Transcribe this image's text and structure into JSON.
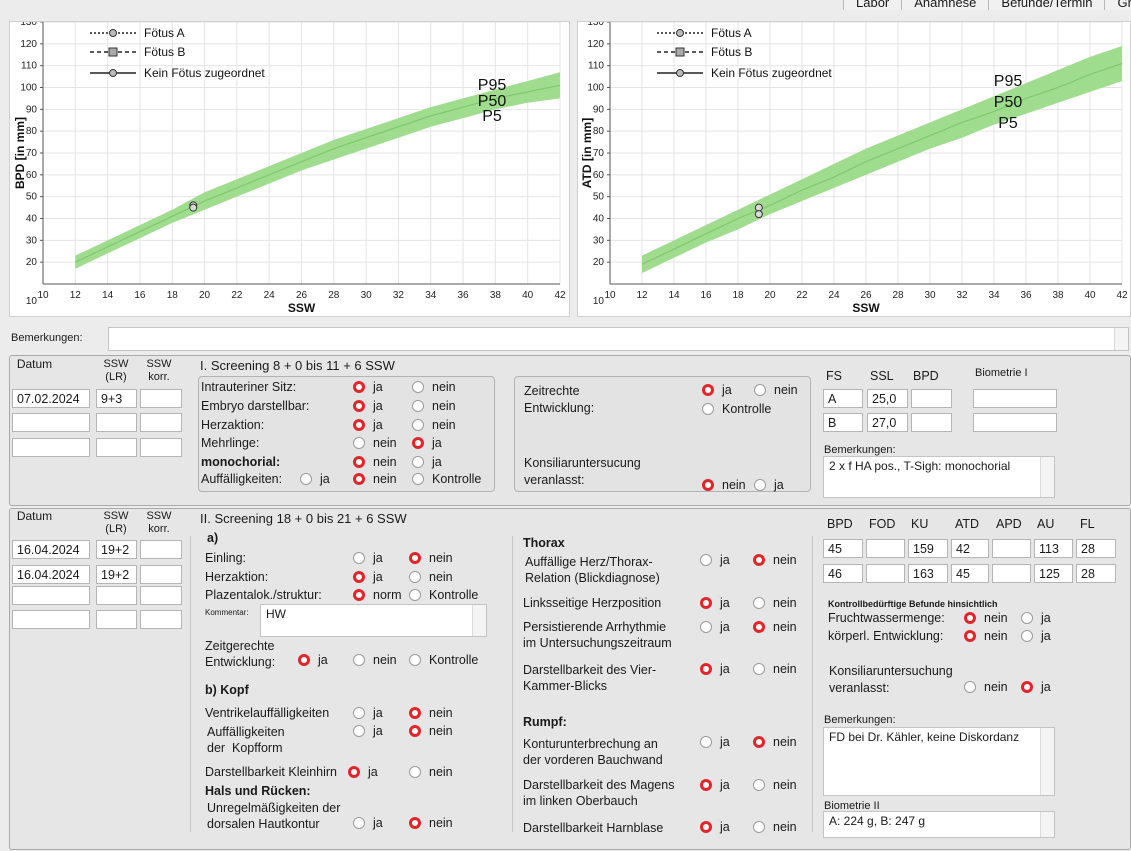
{
  "tabs": [
    "Labor",
    "Anamnese",
    "Befunde/Termin",
    "Gr"
  ],
  "charts": [
    {
      "ylabel": "BPD [in mm]",
      "xlabel": "SSW",
      "p_labels": [
        "P95",
        "P50",
        "P5"
      ]
    },
    {
      "ylabel": "ATD [in mm]",
      "xlabel": "SSW",
      "p_labels": [
        "P95",
        "P50",
        "P5"
      ]
    }
  ],
  "legend": [
    "Fötus A",
    "Fötus B",
    "Kein Fötus zugeordnet"
  ],
  "chart_data": [
    {
      "type": "area",
      "title": "",
      "xlabel": "SSW",
      "ylabel": "BPD [in mm]",
      "xlim": [
        10,
        42
      ],
      "ylim": [
        10,
        130
      ],
      "x_ticks": [
        10,
        12,
        14,
        16,
        18,
        20,
        22,
        24,
        26,
        28,
        30,
        32,
        34,
        36,
        38,
        40,
        42
      ],
      "y_ticks": [
        20,
        30,
        40,
        50,
        60,
        70,
        80,
        90,
        100,
        110,
        120,
        130
      ],
      "series": [
        {
          "name": "P95",
          "x": [
            12,
            14,
            16,
            18,
            20,
            22,
            24,
            26,
            28,
            30,
            32,
            34,
            36,
            38,
            40,
            42
          ],
          "y": [
            23,
            30,
            37,
            44,
            52,
            58,
            64,
            70,
            76,
            81,
            86,
            91,
            95,
            99,
            103,
            107
          ]
        },
        {
          "name": "P50",
          "x": [
            12,
            14,
            16,
            18,
            20,
            22,
            24,
            26,
            28,
            30,
            32,
            34,
            36,
            38,
            40,
            42
          ],
          "y": [
            20,
            27,
            34,
            41,
            48,
            54,
            60,
            66,
            72,
            77,
            82,
            87,
            91,
            95,
            98,
            101
          ]
        },
        {
          "name": "P5",
          "x": [
            12,
            14,
            16,
            18,
            20,
            22,
            24,
            26,
            28,
            30,
            32,
            34,
            36,
            38,
            40,
            42
          ],
          "y": [
            17,
            24,
            31,
            38,
            44,
            50,
            56,
            62,
            67,
            72,
            77,
            82,
            86,
            90,
            93,
            95
          ]
        }
      ],
      "points": [
        {
          "x": 19.3,
          "y": 46
        },
        {
          "x": 19.3,
          "y": 45
        }
      ],
      "grid": true,
      "legend_position": "top-left"
    },
    {
      "type": "area",
      "title": "",
      "xlabel": "SSW",
      "ylabel": "ATD [in mm]",
      "xlim": [
        10,
        42
      ],
      "ylim": [
        10,
        130
      ],
      "x_ticks": [
        10,
        12,
        14,
        16,
        18,
        20,
        22,
        24,
        26,
        28,
        30,
        32,
        34,
        36,
        38,
        40,
        42
      ],
      "y_ticks": [
        20,
        30,
        40,
        50,
        60,
        70,
        80,
        90,
        100,
        110,
        120,
        130
      ],
      "series": [
        {
          "name": "P95",
          "x": [
            12,
            14,
            16,
            18,
            20,
            22,
            24,
            26,
            28,
            30,
            32,
            34,
            36,
            38,
            40,
            42
          ],
          "y": [
            23,
            30,
            37,
            44,
            51,
            58,
            65,
            72,
            78,
            84,
            90,
            96,
            102,
            108,
            114,
            119
          ]
        },
        {
          "name": "P50",
          "x": [
            12,
            14,
            16,
            18,
            20,
            22,
            24,
            26,
            28,
            30,
            32,
            34,
            36,
            38,
            40,
            42
          ],
          "y": [
            19,
            26,
            33,
            40,
            46,
            53,
            59,
            66,
            72,
            78,
            84,
            89,
            95,
            100,
            106,
            111
          ]
        },
        {
          "name": "P5",
          "x": [
            12,
            14,
            16,
            18,
            20,
            22,
            24,
            26,
            28,
            30,
            32,
            34,
            36,
            38,
            40,
            42
          ],
          "y": [
            15,
            22,
            29,
            35,
            42,
            48,
            54,
            60,
            66,
            72,
            77,
            83,
            88,
            93,
            98,
            103
          ]
        }
      ],
      "points": [
        {
          "x": 19.3,
          "y": 45
        },
        {
          "x": 19.3,
          "y": 42
        }
      ],
      "grid": true,
      "legend_position": "top-left"
    }
  ],
  "bemerkungen_label": "Bemerkungen:",
  "s1": {
    "hdr_datum": "Datum",
    "hdr_ssw": "SSW\n(LR)",
    "hdr_ssw_korr": "SSW\nkorr.",
    "title": "I. Screening 8 + 0 bis 11 + 6 SSW",
    "rows": [
      [
        "07.02.2024",
        "9+3",
        ""
      ],
      [
        "",
        "",
        ""
      ],
      [
        "",
        "",
        ""
      ]
    ],
    "q": {
      "sitz": "Intrauteriner Sitz:",
      "embryo": "Embryo darstellbar:",
      "herz": "Herzaktion:",
      "mehrlinge": "Mehrlinge:",
      "mono": "monochorial:",
      "auff": "Auffälligkeiten:",
      "ja": "ja",
      "nein": "nein",
      "kontrolle": "Kontrolle"
    },
    "zeit": "Zeitrechte\nEntwicklung:",
    "konsil": "Konsiliaruntersucung\nveranlasst:",
    "bio_hdr": [
      "FS",
      "SSL",
      "BPD"
    ],
    "bio_title": "Biometrie I",
    "bio_rows": [
      [
        "A",
        "25,0",
        ""
      ],
      [
        "B",
        "27,0",
        ""
      ]
    ],
    "bem_label": "Bemerkungen:",
    "bem": "2 x f HA pos., T-Sigh: monochorial"
  },
  "s2": {
    "hdr_datum": "Datum",
    "hdr_ssw": "SSW\n(LR)",
    "hdr_ssw_korr": "SSW\nkorr.",
    "title": "II. Screening 18 + 0 bis 21 + 6 SSW",
    "rows": [
      [
        "16.04.2024",
        "19+2",
        ""
      ],
      [
        "16.04.2024",
        "19+2",
        ""
      ],
      [
        "",
        "",
        ""
      ],
      [
        "",
        "",
        ""
      ]
    ],
    "a": "a)",
    "einling": "Einling:",
    "herz": "Herzaktion:",
    "plaz": "Plazentalok./struktur:",
    "norm": "norm",
    "kommentar": "Kommentar:",
    "kommentar_val": "HW",
    "zeit": "Zeitgerechte\nEntwicklung:",
    "b": "b) Kopf",
    "ventr": "Ventrikelauffälligkeiten",
    "kopfform": "Auffälligkeiten\nder  Kopfform",
    "klein": "Darstellbarkeit Kleinhirn",
    "hals": "Hals und Rücken:",
    "haut": "Unregelmäßigkeiten der\ndorsalen Hautkontur",
    "thorax": "Thorax",
    "herzthorax": "Auffällige Herz/Thorax-\nRelation (Blickdiagnose)",
    "links": "Linksseitige Herzposition",
    "arr": "Persistierende Arrhythmie\nim Untersuchungszeitraum",
    "vier": "Darstellbarkeit des Vier-\nKammer-Blicks",
    "rumpf": "Rumpf:",
    "kontur": "Konturunterbrechung an\nder vorderen Bauchwand",
    "magen": "Darstellbarkeit des Magens\nim linken Oberbauch",
    "harn": "Darstellbarkeit Harnblase",
    "bio_hdr": [
      "BPD",
      "FOD",
      "KU",
      "ATD",
      "APD",
      "AU",
      "FL"
    ],
    "bio_rows": [
      [
        "45",
        "",
        "159",
        "42",
        "",
        "113",
        "28"
      ],
      [
        "46",
        "",
        "163",
        "45",
        "",
        "125",
        "28"
      ]
    ],
    "kontroll_title": "Kontrollbedürftige Befunde hinsichtlich",
    "frucht": "Fruchtwassermenge:",
    "koerper": "körperl. Entwicklung:",
    "konsil": "Konsiliaruntersuchung\nveranlasst:",
    "bem_label": "Bemerkungen:",
    "bem": "FD bei Dr. Kähler, keine Diskordanz",
    "bio2_label": "Biometrie II",
    "bio2": "A: 224 g, B: 247 g",
    "ja": "ja",
    "nein": "nein",
    "kontrolle": "Kontrolle"
  }
}
